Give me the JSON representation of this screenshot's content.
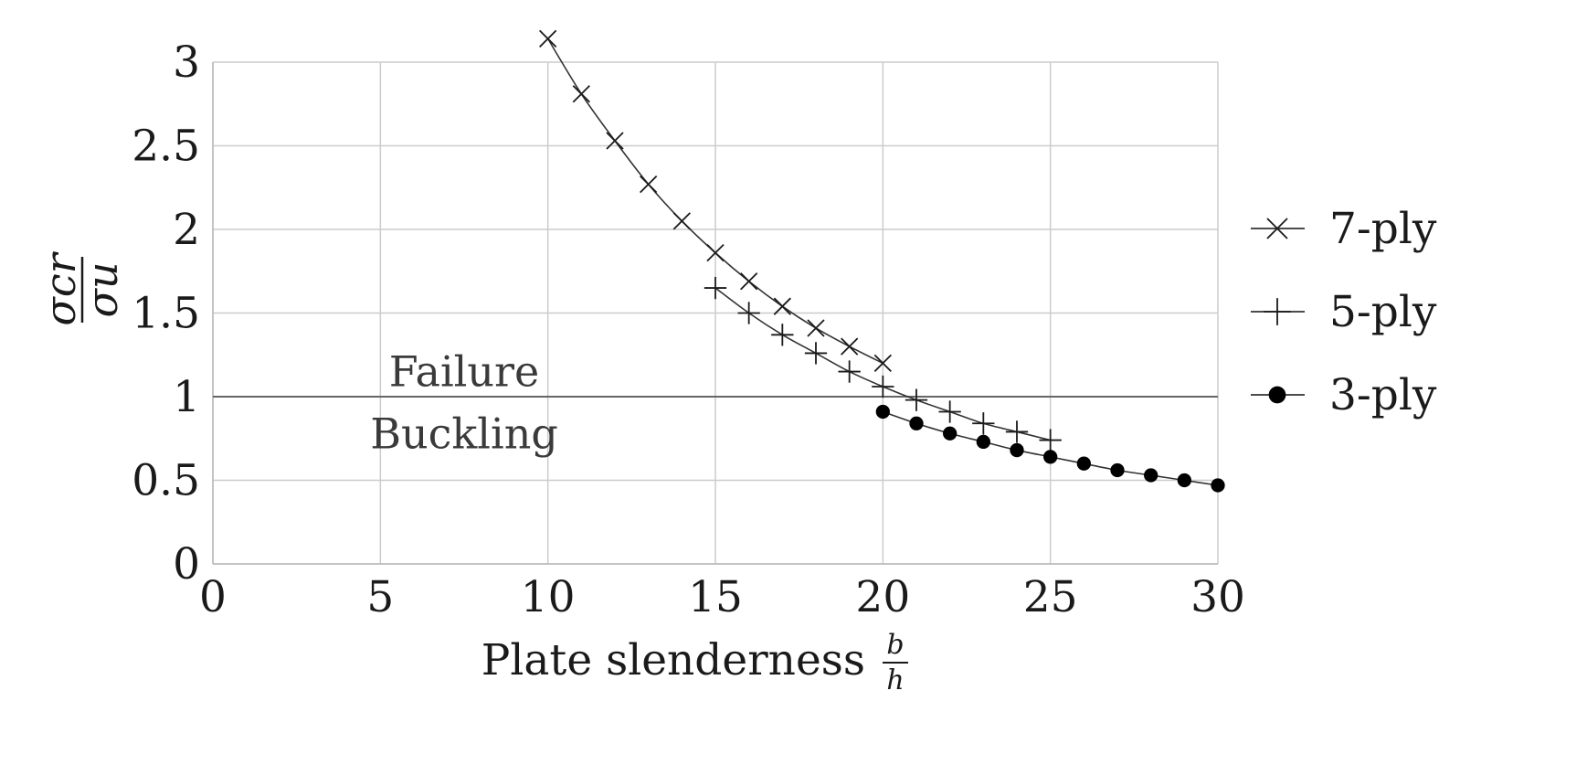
{
  "chart_data": {
    "type": "line",
    "xlabel": "Plate slenderness",
    "xlabel_fraction": {
      "numerator": "b",
      "denominator": "h"
    },
    "ylabel": {
      "numerator": "σcr",
      "denominator": "σu"
    },
    "xlim": [
      0,
      30
    ],
    "ylim": [
      0,
      3
    ],
    "x_ticks": [
      0,
      5,
      10,
      15,
      20,
      25,
      30
    ],
    "y_ticks": [
      0,
      0.5,
      1,
      1.5,
      2,
      2.5,
      3
    ],
    "grid": true,
    "legend_position": "right",
    "reference_line": {
      "y": 1
    },
    "annotations": [
      {
        "text": "Failure",
        "x": 7.5,
        "y": 1.15
      },
      {
        "text": "Buckling",
        "x": 7.5,
        "y": 0.78
      }
    ],
    "series": [
      {
        "name": "7-ply",
        "marker": "x",
        "x": [
          10,
          11,
          12,
          13,
          14,
          15,
          16,
          17,
          18,
          19,
          20
        ],
        "y": [
          3.14,
          2.81,
          2.53,
          2.27,
          2.05,
          1.86,
          1.69,
          1.54,
          1.41,
          1.3,
          1.2
        ]
      },
      {
        "name": "5-ply",
        "marker": "+",
        "x": [
          15,
          16,
          17,
          18,
          19,
          20,
          21,
          22,
          23,
          24,
          25
        ],
        "y": [
          1.65,
          1.5,
          1.37,
          1.26,
          1.15,
          1.06,
          0.98,
          0.91,
          0.84,
          0.79,
          0.74
        ]
      },
      {
        "name": "3-ply",
        "marker": "dot",
        "x": [
          20,
          21,
          22,
          23,
          24,
          25,
          26,
          27,
          28,
          29,
          30
        ],
        "y": [
          0.91,
          0.84,
          0.78,
          0.73,
          0.68,
          0.64,
          0.6,
          0.56,
          0.53,
          0.5,
          0.47
        ]
      }
    ]
  }
}
